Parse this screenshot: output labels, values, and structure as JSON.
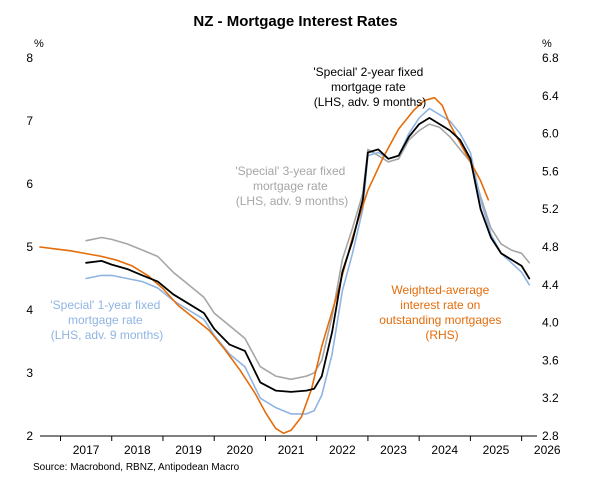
{
  "chart_data": {
    "type": "line",
    "title": "NZ - Mortgage Interest Rates",
    "source": "Source: Macrobond, RBNZ, Antipodean Macro",
    "left_axis": {
      "unit": "%",
      "ylim": [
        2,
        8
      ],
      "ticks": [
        "2",
        "3",
        "4",
        "5",
        "6",
        "7",
        "8"
      ]
    },
    "right_axis": {
      "unit": "%",
      "ylim": [
        2.8,
        6.8
      ],
      "ticks": [
        "2.8",
        "3.2",
        "3.6",
        "4.0",
        "4.4",
        "4.8",
        "5.2",
        "5.6",
        "6.0",
        "6.4",
        "6.8"
      ]
    },
    "x_ticks": [
      "2017",
      "2018",
      "2019",
      "2020",
      "2021",
      "2022",
      "2023",
      "2024",
      "2025",
      "2026"
    ],
    "xlim": [
      2016.6,
      2026.3
    ],
    "colors": {
      "black": "#000000",
      "grey": "#a6a6a6",
      "blue": "#8fb4e3",
      "orange": "#e46c0a"
    },
    "annotations": [
      {
        "color": "black",
        "lines": [
          "'Special' 2-year fixed",
          "mortgage rate",
          "(LHS, adv. 9 months)"
        ]
      },
      {
        "color": "grey",
        "lines": [
          "'Special' 3-year fixed",
          "mortgage rate",
          "(LHS, adv. 9 months)"
        ]
      },
      {
        "color": "blue",
        "lines": [
          "'Special' 1-year fixed",
          "mortgage rate",
          "(LHS, adv. 9 months)"
        ]
      },
      {
        "color": "orange",
        "lines": [
          "Weighted-average",
          "interest rate on",
          "outstanding mortgages",
          "(RHS)"
        ]
      }
    ],
    "series": [
      {
        "name": "'Special' 2-year fixed mortgage rate (LHS, adv. 9 months)",
        "axis": "left",
        "color": "black",
        "x": [
          2017.5,
          2017.8,
          2018.0,
          2018.3,
          2018.6,
          2018.9,
          2019.2,
          2019.5,
          2019.8,
          2020.0,
          2020.3,
          2020.6,
          2020.9,
          2021.2,
          2021.5,
          2021.8,
          2021.95,
          2022.1,
          2022.3,
          2022.5,
          2022.7,
          2022.9,
          2023.0,
          2023.2,
          2023.4,
          2023.6,
          2023.8,
          2024.0,
          2024.2,
          2024.4,
          2024.6,
          2024.8,
          2025.0,
          2025.2,
          2025.4,
          2025.6,
          2025.8,
          2026.0,
          2026.15
        ],
        "y": [
          4.75,
          4.78,
          4.72,
          4.65,
          4.55,
          4.45,
          4.25,
          4.1,
          3.95,
          3.7,
          3.45,
          3.35,
          2.85,
          2.72,
          2.7,
          2.72,
          2.75,
          2.95,
          3.65,
          4.6,
          5.1,
          5.75,
          6.5,
          6.55,
          6.4,
          6.45,
          6.75,
          6.95,
          7.05,
          6.95,
          6.85,
          6.7,
          6.4,
          5.6,
          5.15,
          4.9,
          4.8,
          4.7,
          4.5
        ]
      },
      {
        "name": "'Special' 3-year fixed mortgage rate (LHS, adv. 9 months)",
        "axis": "left",
        "color": "grey",
        "x": [
          2017.5,
          2017.8,
          2018.0,
          2018.3,
          2018.6,
          2018.9,
          2019.2,
          2019.5,
          2019.8,
          2020.0,
          2020.3,
          2020.6,
          2020.9,
          2021.2,
          2021.5,
          2021.8,
          2021.95,
          2022.1,
          2022.3,
          2022.5,
          2022.7,
          2022.9,
          2023.0,
          2023.2,
          2023.4,
          2023.6,
          2023.8,
          2024.0,
          2024.2,
          2024.4,
          2024.6,
          2024.8,
          2025.0,
          2025.2,
          2025.4,
          2025.6,
          2025.8,
          2026.0,
          2026.15
        ],
        "y": [
          5.1,
          5.15,
          5.12,
          5.05,
          4.95,
          4.85,
          4.6,
          4.4,
          4.2,
          3.95,
          3.75,
          3.55,
          3.1,
          2.95,
          2.9,
          2.95,
          3.0,
          3.2,
          3.9,
          4.8,
          5.3,
          5.85,
          6.55,
          6.45,
          6.35,
          6.4,
          6.7,
          6.85,
          6.95,
          6.9,
          6.75,
          6.55,
          6.35,
          5.8,
          5.3,
          5.05,
          4.95,
          4.9,
          4.75
        ]
      },
      {
        "name": "'Special' 1-year fixed mortgage rate (LHS, adv. 9 months)",
        "axis": "left",
        "color": "blue",
        "x": [
          2017.5,
          2017.8,
          2018.0,
          2018.3,
          2018.6,
          2018.9,
          2019.2,
          2019.5,
          2019.8,
          2020.0,
          2020.3,
          2020.6,
          2020.9,
          2021.2,
          2021.5,
          2021.8,
          2021.95,
          2022.1,
          2022.3,
          2022.5,
          2022.7,
          2022.9,
          2023.0,
          2023.2,
          2023.4,
          2023.6,
          2023.8,
          2024.0,
          2024.2,
          2024.4,
          2024.6,
          2024.8,
          2025.0,
          2025.2,
          2025.4,
          2025.6,
          2025.8,
          2026.0,
          2026.15
        ],
        "y": [
          4.5,
          4.55,
          4.55,
          4.5,
          4.45,
          4.35,
          4.15,
          4.0,
          3.85,
          3.6,
          3.3,
          3.1,
          2.6,
          2.45,
          2.35,
          2.35,
          2.4,
          2.65,
          3.3,
          4.3,
          4.9,
          5.6,
          6.45,
          6.5,
          6.4,
          6.45,
          6.8,
          7.05,
          7.2,
          7.1,
          7.0,
          6.8,
          6.5,
          5.75,
          5.2,
          4.9,
          4.75,
          4.6,
          4.4
        ]
      },
      {
        "name": "Weighted-average interest rate on outstanding mortgages (RHS)",
        "axis": "right",
        "color": "orange",
        "x": [
          2016.6,
          2016.9,
          2017.2,
          2017.5,
          2017.8,
          2018.1,
          2018.4,
          2018.7,
          2019.0,
          2019.3,
          2019.6,
          2019.9,
          2020.2,
          2020.5,
          2020.8,
          2021.0,
          2021.2,
          2021.35,
          2021.5,
          2021.7,
          2021.9,
          2022.1,
          2022.4,
          2022.7,
          2023.0,
          2023.3,
          2023.6,
          2023.9,
          2024.1,
          2024.3,
          2024.45,
          2024.6,
          2024.8,
          2025.0,
          2025.2,
          2025.35
        ],
        "y": [
          4.8,
          4.78,
          4.76,
          4.73,
          4.7,
          4.66,
          4.6,
          4.5,
          4.36,
          4.18,
          4.05,
          3.92,
          3.72,
          3.5,
          3.25,
          3.05,
          2.88,
          2.83,
          2.86,
          3.0,
          3.3,
          3.75,
          4.3,
          4.9,
          5.4,
          5.75,
          6.05,
          6.25,
          6.35,
          6.38,
          6.3,
          6.1,
          5.9,
          5.7,
          5.5,
          5.3
        ]
      }
    ]
  }
}
